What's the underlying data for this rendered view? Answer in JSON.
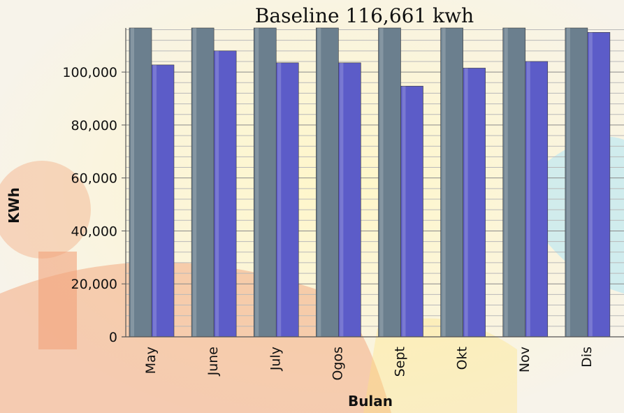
{
  "chart_data": {
    "type": "bar",
    "title": "Baseline 116,661 kwh",
    "xlabel": "Bulan",
    "ylabel": "KWh",
    "categories": [
      "May",
      "June",
      "July",
      "Ogos",
      "Sept",
      "Okt",
      "Nov",
      "Dis"
    ],
    "series": [
      {
        "values": [
          116661,
          116661,
          116661,
          116661,
          116661,
          116661,
          116661,
          116661
        ],
        "color": "#6b7f8e"
      },
      {
        "values": [
          102700,
          108000,
          103500,
          103500,
          94700,
          101500,
          104000,
          115000
        ],
        "color": "#5c5cc8"
      }
    ],
    "yticks": [
      "0",
      "20,000",
      "40,000",
      "60,000",
      "80,000",
      "100,000"
    ],
    "ylim": [
      0,
      116661
    ],
    "grid": true,
    "legend": "none"
  }
}
